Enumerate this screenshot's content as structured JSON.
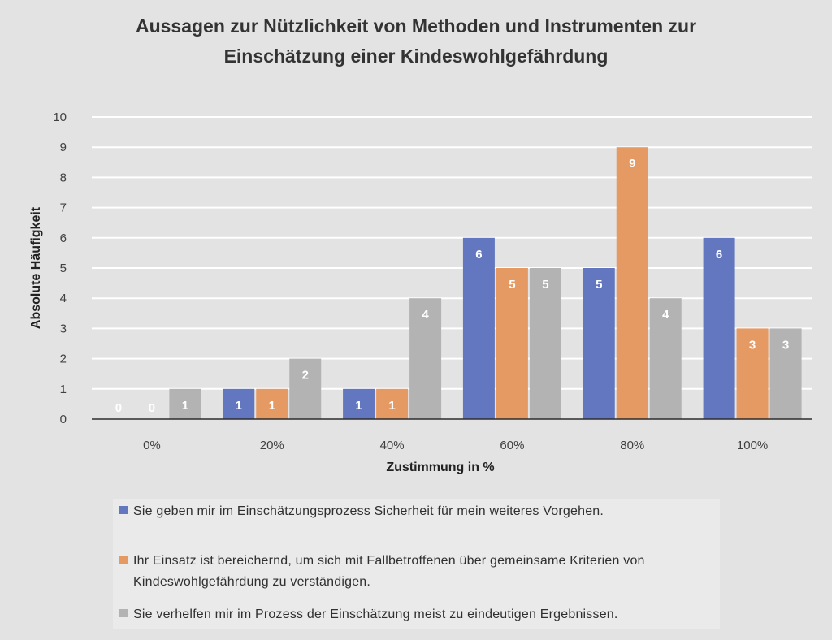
{
  "chart_data": {
    "type": "bar",
    "title_lines": [
      "Aussagen zur Nützlichkeit von Methoden und Instrumenten zur",
      "Einschätzung einer Kindeswohlgefährdung"
    ],
    "xlabel": "Zustimmung in %",
    "ylabel": "Absolute Häufigkeit",
    "categories": [
      "0%",
      "20%",
      "40%",
      "60%",
      "80%",
      "100%"
    ],
    "ylim": [
      0,
      10
    ],
    "yticks": [
      0,
      1,
      2,
      3,
      4,
      5,
      6,
      7,
      8,
      9,
      10
    ],
    "grid": true,
    "legend_position": "bottom",
    "series": [
      {
        "name_lines": [
          "Sie geben mir im Einschätzungsprozess Sicherheit für mein weiteres Vorgehen."
        ],
        "color": "#6277bf",
        "values": [
          0,
          1,
          1,
          6,
          5,
          6
        ]
      },
      {
        "name_lines": [
          "Ihr Einsatz ist bereichernd, um sich mit Fallbetroffenen über gemeinsame Kriterien von",
          "Kindeswohlgefährdung zu verständigen."
        ],
        "color": "#e59a63",
        "values": [
          0,
          1,
          1,
          5,
          9,
          3
        ]
      },
      {
        "name_lines": [
          "Sie verhelfen mir im Prozess der Einschätzung meist zu eindeutigen Ergebnissen."
        ],
        "color": "#b3b3b3",
        "values": [
          1,
          2,
          4,
          5,
          4,
          3
        ]
      }
    ]
  }
}
